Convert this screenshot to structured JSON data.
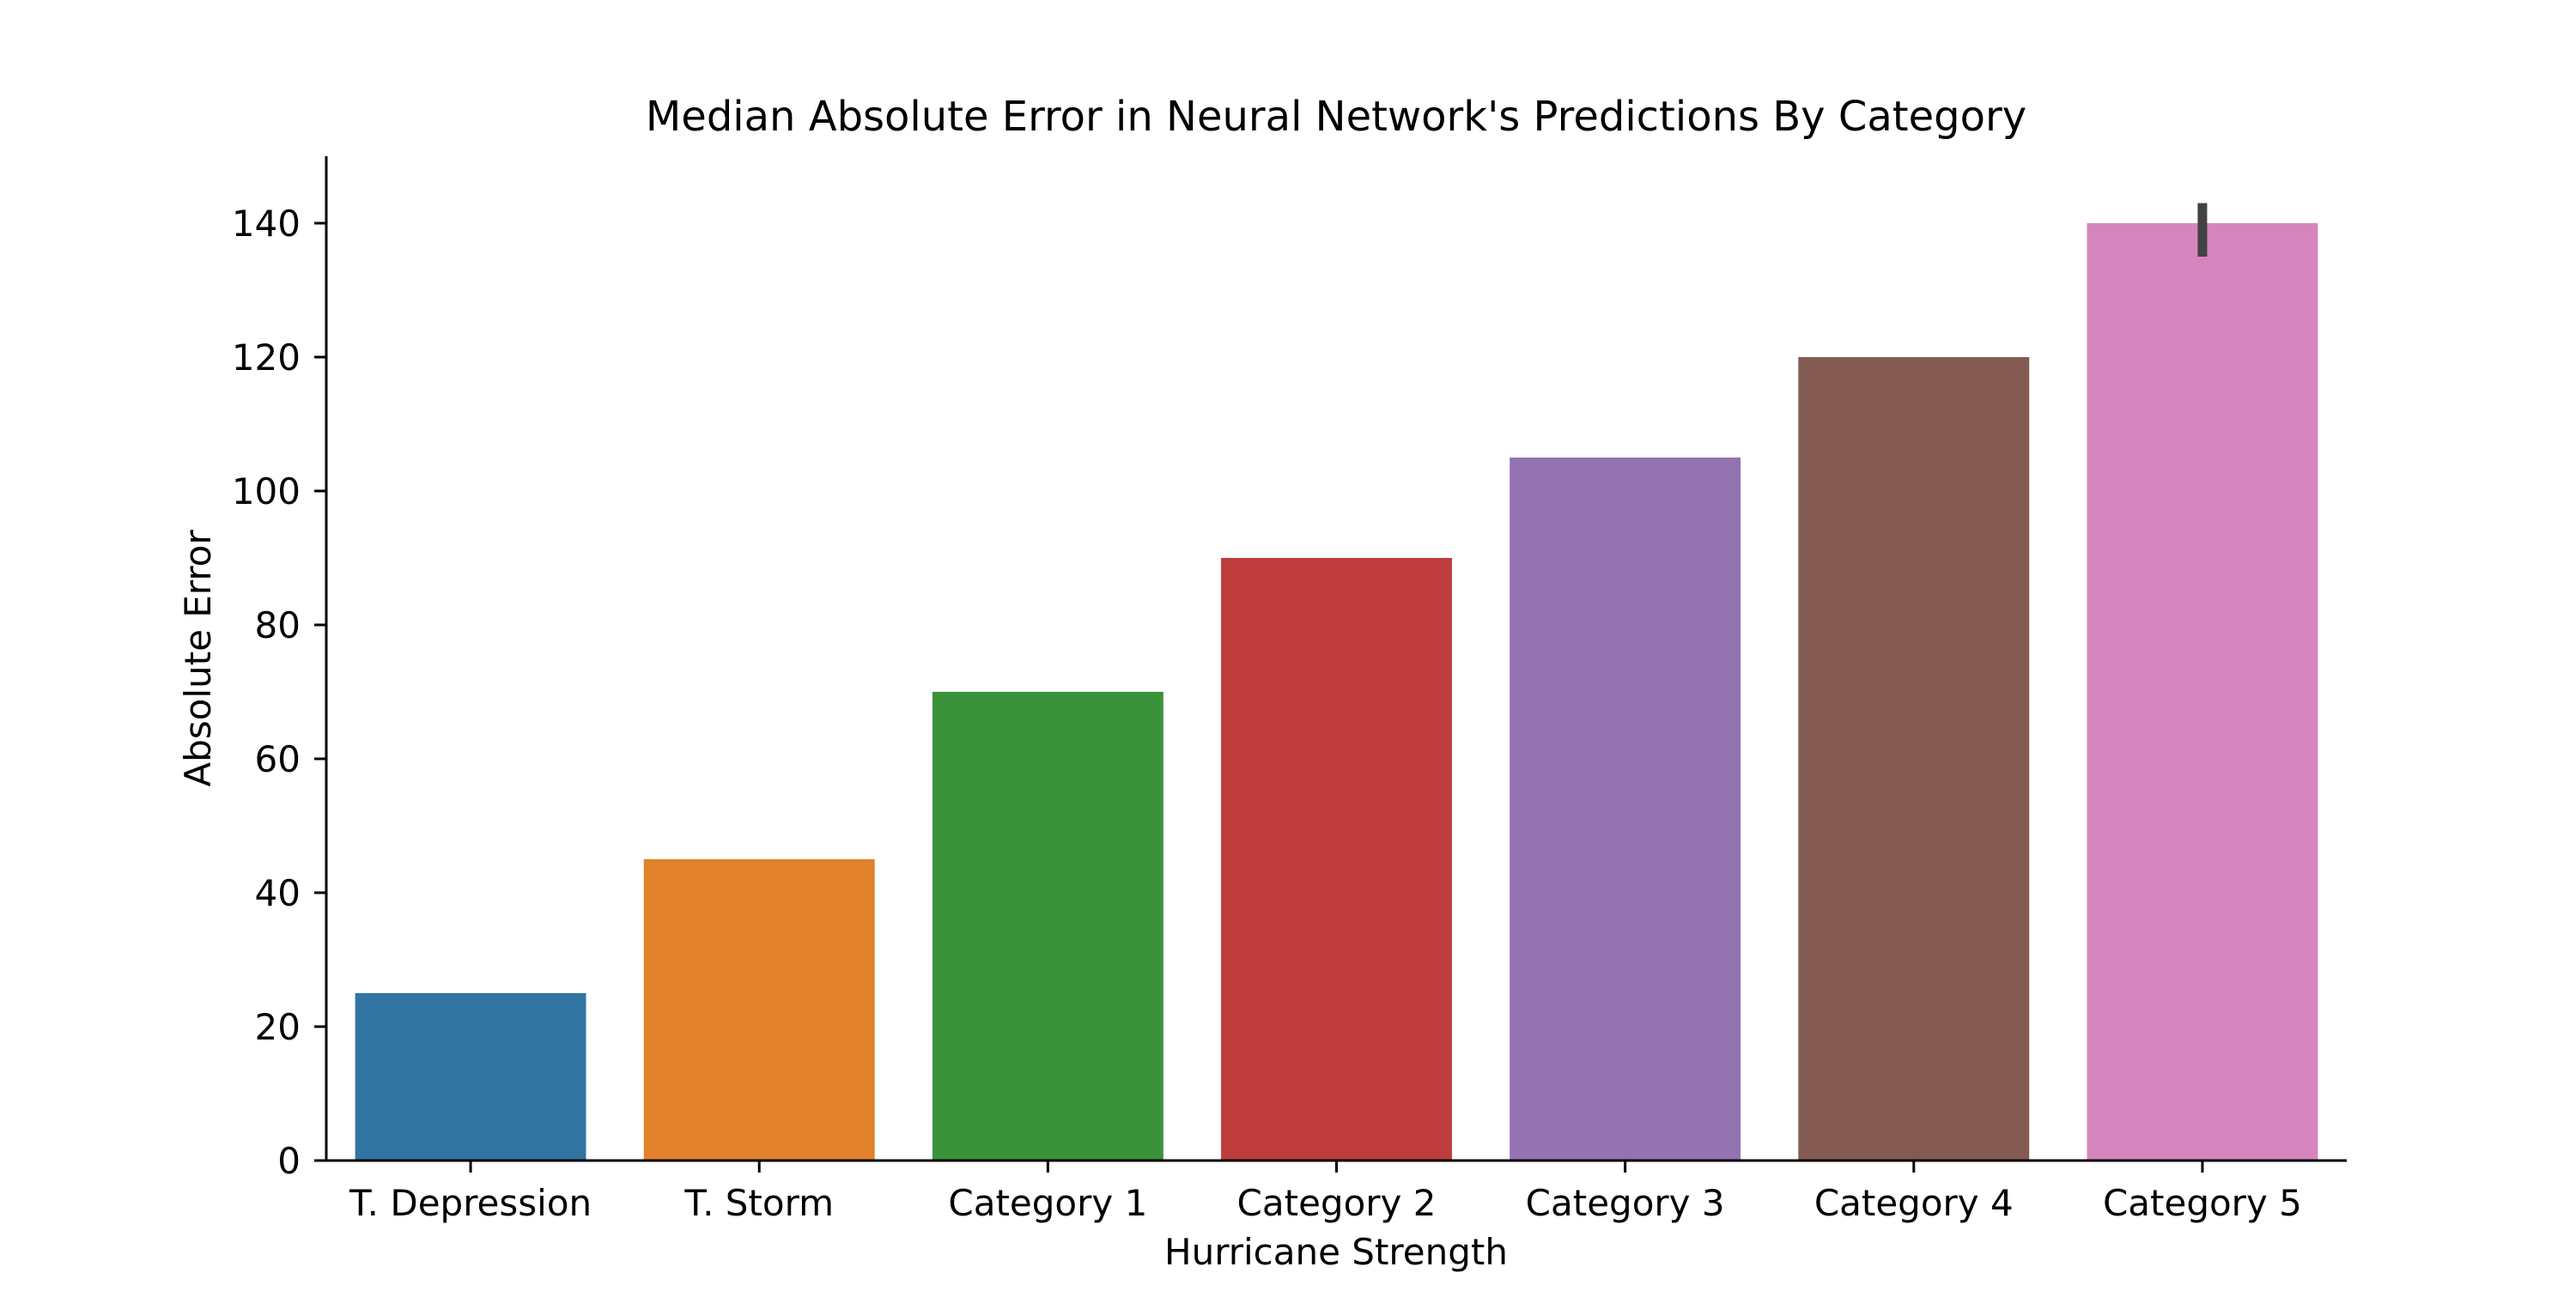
{
  "chart_data": {
    "type": "bar",
    "title": "Median Absolute Error in Neural Network's Predictions By Category",
    "xlabel": "Hurricane Strength",
    "ylabel": "Absolute Error",
    "categories": [
      "T. Depression",
      "T. Storm",
      "Category 1",
      "Category 2",
      "Category 3",
      "Category 4",
      "Category 5"
    ],
    "values": [
      25,
      45,
      70,
      90,
      105,
      120,
      140
    ],
    "error_bars": [
      null,
      null,
      null,
      null,
      null,
      null,
      {
        "low": 135,
        "high": 143
      }
    ],
    "colors": [
      "#3274a1",
      "#e1812c",
      "#3a923a",
      "#c03d3e",
      "#9372b2",
      "#845b53",
      "#d684bd"
    ],
    "ylim": [
      0,
      150
    ],
    "yticks": [
      0,
      20,
      40,
      60,
      80,
      100,
      120,
      140
    ],
    "ytick_labels": [
      "0",
      "20",
      "40",
      "60",
      "80",
      "100",
      "120",
      "140"
    ],
    "grid": false,
    "legend": "none"
  }
}
